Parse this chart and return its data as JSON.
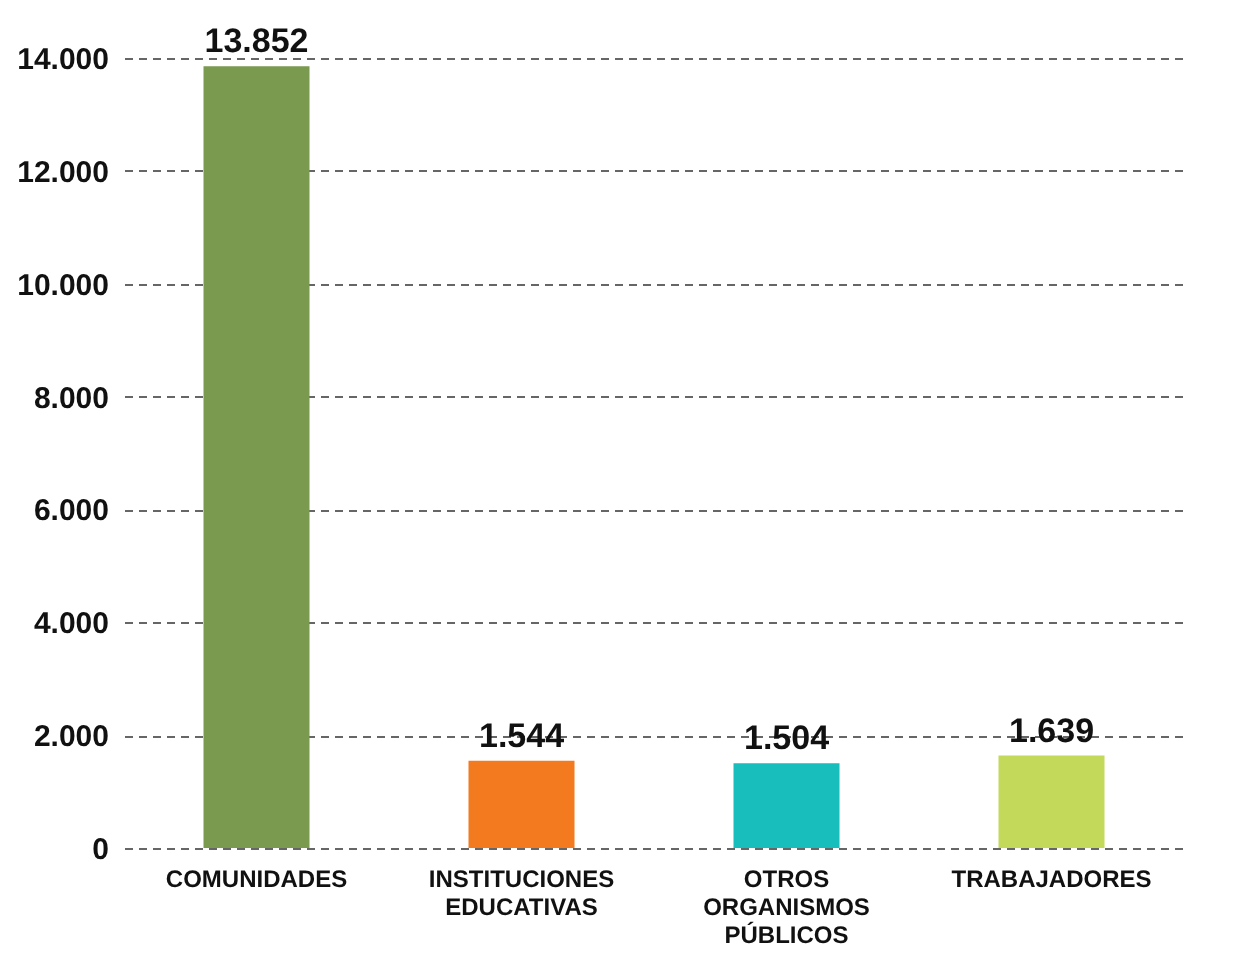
{
  "chart_data": {
    "type": "bar",
    "categories": [
      "COMUNIDADES",
      "INSTITUCIONES EDUCATIVAS",
      "OTROS ORGANISMOS PÚBLICOS",
      "TRABAJADORES"
    ],
    "values": [
      13852,
      1544,
      1504,
      1639
    ],
    "colors": [
      "#7a9a4f",
      "#f47a20",
      "#17bebb",
      "#c3d95a"
    ],
    "value_labels": [
      "13.852",
      "1.544",
      "1.504",
      "1.639"
    ],
    "ylim": [
      0,
      14000
    ],
    "yticks": [
      {
        "value": 0,
        "label": "0"
      },
      {
        "value": 2000,
        "label": "2.000"
      },
      {
        "value": 4000,
        "label": "4.000"
      },
      {
        "value": 6000,
        "label": "6.000"
      },
      {
        "value": 8000,
        "label": "8.000"
      },
      {
        "value": 10000,
        "label": "10.000"
      },
      {
        "value": 12000,
        "label": "12.000"
      },
      {
        "value": 14000,
        "label": "14.000"
      }
    ],
    "grid": "y"
  }
}
